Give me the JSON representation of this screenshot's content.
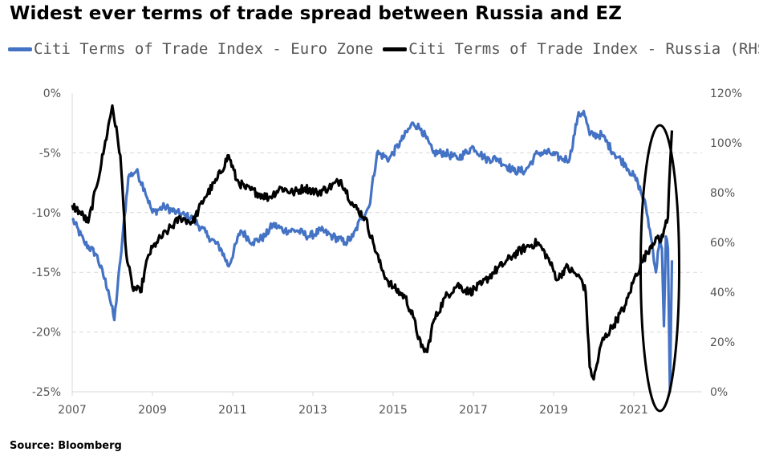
{
  "chart_data": {
    "type": "line",
    "title": "Widest ever terms of trade spread between Russia and EZ",
    "source": "Source:  Bloomberg",
    "x_ticks": [
      "2007",
      "2009",
      "2011",
      "2013",
      "2015",
      "2017",
      "2019",
      "2021"
    ],
    "xlim": [
      2007,
      2022.7
    ],
    "y_left": {
      "ticks": [
        "0%",
        "-5%",
        "-10%",
        "-15%",
        "-20%",
        "-25%"
      ],
      "ylim": [
        -25,
        0
      ]
    },
    "y_right": {
      "ticks": [
        "120%",
        "100%",
        "80%",
        "60%",
        "40%",
        "20%",
        "0%"
      ],
      "ylim": [
        0,
        120
      ]
    },
    "grid": "horizontal dashed",
    "legend_position": "top",
    "series": [
      {
        "name": "Citi Terms of Trade Index - Euro Zone",
        "axis": "left",
        "color": "#4472C4",
        "x": [
          2007.0,
          2007.3,
          2007.6,
          2007.9,
          2008.05,
          2008.2,
          2008.4,
          2008.6,
          2008.8,
          2009.0,
          2009.3,
          2009.6,
          2010.0,
          2010.4,
          2010.7,
          2010.9,
          2011.2,
          2011.5,
          2011.8,
          2012.0,
          2012.3,
          2012.6,
          2012.9,
          2013.2,
          2013.5,
          2013.8,
          2014.0,
          2014.2,
          2014.4,
          2014.6,
          2014.9,
          2015.2,
          2015.5,
          2015.7,
          2016.0,
          2016.3,
          2016.6,
          2017.0,
          2017.3,
          2017.6,
          2018.0,
          2018.3,
          2018.6,
          2018.9,
          2019.2,
          2019.4,
          2019.6,
          2019.75,
          2019.9,
          2020.2,
          2020.5,
          2020.8,
          2021.1,
          2021.3,
          2021.45,
          2021.55,
          2021.65,
          2021.7,
          2021.75,
          2021.8,
          2021.85,
          2021.9,
          2021.95
        ],
        "values": [
          -10.5,
          -12.5,
          -13.5,
          -16.5,
          -19.0,
          -14.0,
          -7.0,
          -6.5,
          -8.0,
          -10.0,
          -9.5,
          -10.0,
          -10.5,
          -12.0,
          -13.0,
          -14.5,
          -11.5,
          -12.5,
          -12.0,
          -11.0,
          -11.5,
          -11.5,
          -12.0,
          -11.5,
          -12.0,
          -12.5,
          -12.0,
          -10.5,
          -9.5,
          -5.0,
          -5.5,
          -4.0,
          -2.5,
          -3.0,
          -5.0,
          -5.0,
          -5.5,
          -4.5,
          -5.5,
          -5.5,
          -6.5,
          -6.5,
          -5.0,
          -5.0,
          -5.5,
          -5.5,
          -2.0,
          -1.5,
          -3.5,
          -3.5,
          -5.0,
          -6.0,
          -7.5,
          -9.5,
          -12.5,
          -15.0,
          -12.0,
          -13.0,
          -19.5,
          -12.0,
          -13.0,
          -25.0,
          -14.0
        ]
      },
      {
        "name": "Citi Terms of Trade Index - Russia (RHS)",
        "axis": "right",
        "color": "#000000",
        "x": [
          2007.0,
          2007.2,
          2007.4,
          2007.6,
          2007.8,
          2008.0,
          2008.2,
          2008.35,
          2008.5,
          2008.7,
          2008.9,
          2009.1,
          2009.4,
          2009.7,
          2010.0,
          2010.3,
          2010.6,
          2010.9,
          2011.1,
          2011.3,
          2011.6,
          2011.9,
          2012.2,
          2012.5,
          2012.8,
          2013.1,
          2013.4,
          2013.7,
          2014.0,
          2014.3,
          2014.5,
          2014.7,
          2014.85,
          2015.0,
          2015.3,
          2015.5,
          2015.7,
          2015.85,
          2016.0,
          2016.3,
          2016.6,
          2016.9,
          2017.2,
          2017.5,
          2017.8,
          2018.0,
          2018.3,
          2018.6,
          2018.85,
          2019.1,
          2019.3,
          2019.5,
          2019.7,
          2019.8,
          2019.9,
          2020.0,
          2020.2,
          2020.5,
          2020.8,
          2021.0,
          2021.2,
          2021.4,
          2021.55,
          2021.65,
          2021.75,
          2021.85,
          2021.9,
          2021.95
        ],
        "values": [
          75,
          72,
          68,
          82,
          98,
          115,
          95,
          55,
          42,
          40,
          55,
          60,
          65,
          70,
          68,
          78,
          85,
          95,
          85,
          82,
          80,
          78,
          82,
          80,
          82,
          80,
          82,
          85,
          75,
          70,
          60,
          50,
          45,
          42,
          38,
          30,
          18,
          16,
          28,
          38,
          43,
          40,
          43,
          48,
          52,
          55,
          58,
          60,
          54,
          45,
          50,
          48,
          45,
          40,
          10,
          5,
          20,
          27,
          35,
          45,
          52,
          58,
          62,
          60,
          65,
          70,
          90,
          105
        ]
      }
    ],
    "annotations": [
      "ellipse highlighting recent divergence (2021)"
    ]
  }
}
